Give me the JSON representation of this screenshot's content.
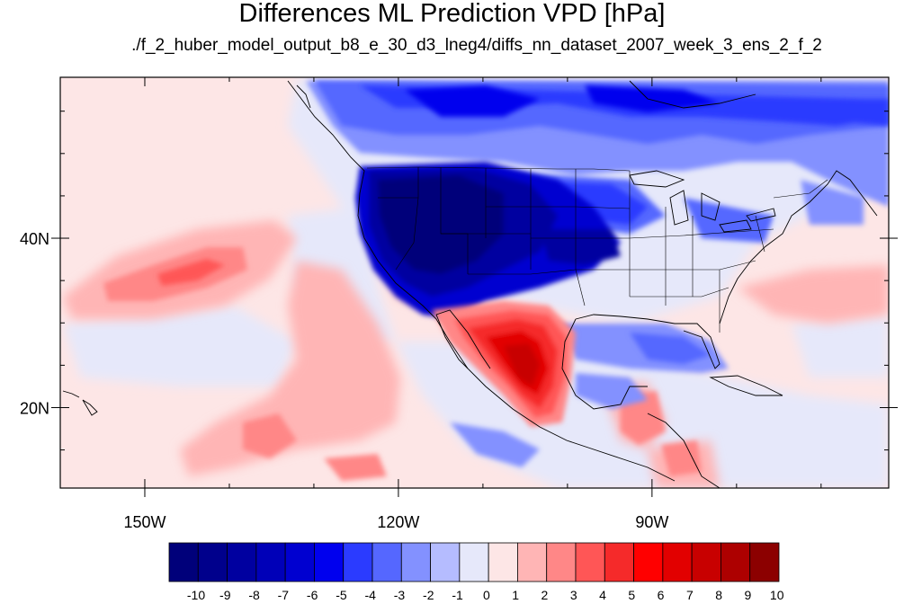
{
  "title": "Differences ML Prediction VPD [hPa]",
  "subtitle": "./f_2_huber_model_output_b8_e_30_d3_lneg4/diffs_nn_dataset_2007_week_3_ens_2_f_2",
  "map": {
    "projection": "cylindrical-equidistant",
    "lon_range": [
      -160,
      -62
    ],
    "lat_range": [
      10.5,
      59
    ],
    "lon_ticks": [
      {
        "value": -150,
        "label": "150W"
      },
      {
        "value": -120,
        "label": "120W"
      },
      {
        "value": -90,
        "label": "90W"
      }
    ],
    "lat_ticks": [
      {
        "value": 40,
        "label": "40N"
      },
      {
        "value": 20,
        "label": "20N"
      }
    ],
    "features": [
      "coastlines",
      "us-state-boundaries",
      "country-boundaries"
    ]
  },
  "colorbar": {
    "labels": [
      "-10",
      "-9",
      "-8",
      "-7",
      "-6",
      "-5",
      "-4",
      "-3",
      "-2",
      "-1",
      "0",
      "1",
      "2",
      "3",
      "4",
      "5",
      "6",
      "7",
      "8",
      "9",
      "10"
    ],
    "colors": [
      "#00007a",
      "#00008c",
      "#0000a0",
      "#0000b8",
      "#0000d0",
      "#0000ee",
      "#2b3bff",
      "#5567ff",
      "#8391ff",
      "#b5bcff",
      "#e6e8fa",
      "#fde6e6",
      "#ffb5b5",
      "#ff8787",
      "#ff5656",
      "#f52a2a",
      "#ff0000",
      "#e20000",
      "#c80000",
      "#ad0000",
      "#8c0000"
    ]
  }
}
